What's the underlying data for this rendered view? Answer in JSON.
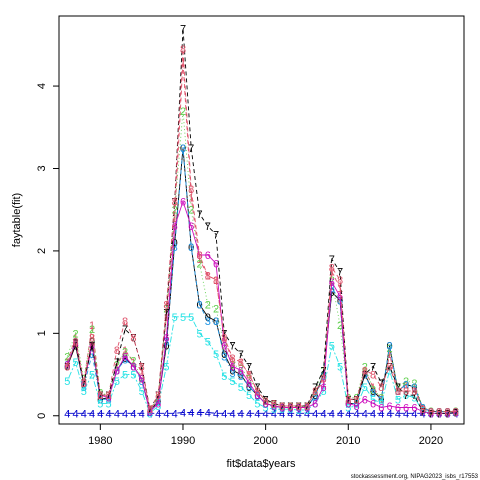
{
  "chart_data": {
    "type": "line",
    "xlabel": "fit$data$years",
    "ylabel": "faytable(fit)",
    "xlim": [
      1975,
      2024
    ],
    "ylim": [
      -0.1,
      4.85
    ],
    "x_ticks": [
      1980,
      1990,
      2000,
      2010,
      2020
    ],
    "y_ticks": [
      0,
      1,
      2,
      3,
      4
    ],
    "grid": false,
    "legend": "none",
    "caption": "stockassessment.org, NIPAG2023_isbs_r17553",
    "x": [
      1976,
      1977,
      1978,
      1979,
      1980,
      1981,
      1982,
      1983,
      1984,
      1985,
      1986,
      1987,
      1988,
      1989,
      1990,
      1991,
      1992,
      1993,
      1994,
      1995,
      1996,
      1997,
      1998,
      1999,
      2000,
      2001,
      2002,
      2003,
      2004,
      2005,
      2006,
      2007,
      2008,
      2009,
      2010,
      2011,
      2012,
      2013,
      2014,
      2015,
      2016,
      2017,
      2018,
      2019,
      2020,
      2021,
      2022,
      2023
    ],
    "series": [
      {
        "label": "0",
        "color": "#000000",
        "dash": "solid",
        "values": [
          0.6,
          0.85,
          0.38,
          0.9,
          0.2,
          0.22,
          0.55,
          0.7,
          0.6,
          0.45,
          0.05,
          0.18,
          0.85,
          2.1,
          3.25,
          2.05,
          1.35,
          1.2,
          1.15,
          0.75,
          0.55,
          0.5,
          0.35,
          0.25,
          0.15,
          0.12,
          0.1,
          0.1,
          0.1,
          0.1,
          0.25,
          0.5,
          1.5,
          1.4,
          0.15,
          0.15,
          0.5,
          0.3,
          0.2,
          0.85,
          0.3,
          0.38,
          0.35,
          0.1,
          0.05,
          0.05,
          0.05,
          0.05
        ]
      },
      {
        "label": "1",
        "color": "#DF536B",
        "dash": "dashed",
        "values": [
          0.65,
          0.95,
          0.4,
          1.1,
          0.25,
          0.25,
          0.6,
          0.8,
          0.65,
          0.55,
          0.07,
          0.2,
          1.2,
          2.4,
          4.3,
          2.65,
          1.9,
          1.7,
          1.65,
          0.95,
          0.65,
          0.65,
          0.5,
          0.3,
          0.18,
          0.15,
          0.12,
          0.12,
          0.12,
          0.12,
          0.3,
          0.4,
          1.75,
          1.55,
          0.2,
          0.2,
          0.55,
          0.35,
          0.2,
          0.75,
          0.3,
          0.38,
          0.35,
          0.1,
          0.06,
          0.05,
          0.05,
          0.06
        ]
      },
      {
        "label": "2",
        "color": "#61D04F",
        "dash": "dotted",
        "values": [
          0.72,
          1.0,
          0.45,
          1.05,
          0.28,
          0.25,
          0.62,
          0.78,
          0.67,
          0.45,
          0.07,
          0.22,
          1.3,
          2.5,
          3.7,
          2.5,
          1.85,
          1.35,
          1.3,
          0.85,
          0.62,
          0.58,
          0.45,
          0.3,
          0.18,
          0.14,
          0.12,
          0.11,
          0.11,
          0.11,
          0.3,
          0.55,
          1.65,
          1.1,
          0.22,
          0.22,
          0.6,
          0.32,
          0.22,
          0.82,
          0.35,
          0.42,
          0.4,
          0.1,
          0.06,
          0.05,
          0.05,
          0.06
        ]
      },
      {
        "label": "3",
        "color": "#2297E6",
        "dash": "dotdash",
        "values": [
          0.62,
          0.9,
          0.35,
          0.75,
          0.2,
          0.2,
          0.55,
          0.68,
          0.6,
          0.42,
          0.05,
          0.17,
          0.9,
          2.05,
          3.25,
          2.05,
          1.35,
          1.15,
          1.15,
          0.72,
          0.52,
          0.48,
          0.36,
          0.24,
          0.14,
          0.11,
          0.1,
          0.1,
          0.1,
          0.1,
          0.24,
          0.48,
          1.55,
          1.4,
          0.15,
          0.15,
          0.5,
          0.28,
          0.2,
          0.85,
          0.3,
          0.38,
          0.35,
          0.1,
          0.05,
          0.05,
          0.05,
          0.05
        ]
      },
      {
        "label": "4",
        "color": "#0000CC",
        "dash": "longdash",
        "values": [
          0.03,
          0.03,
          0.03,
          0.03,
          0.03,
          0.03,
          0.03,
          0.03,
          0.03,
          0.03,
          0.03,
          0.03,
          0.03,
          0.03,
          0.04,
          0.04,
          0.04,
          0.04,
          0.03,
          0.03,
          0.03,
          0.03,
          0.03,
          0.03,
          0.03,
          0.03,
          0.03,
          0.03,
          0.03,
          0.03,
          0.03,
          0.03,
          0.03,
          0.03,
          0.03,
          0.03,
          0.03,
          0.03,
          0.03,
          0.03,
          0.03,
          0.03,
          0.03,
          0.03,
          0.03,
          0.03,
          0.03,
          0.03
        ]
      },
      {
        "label": "5",
        "color": "#28E2E5",
        "dash": "twodash",
        "values": [
          0.42,
          0.65,
          0.3,
          0.5,
          0.15,
          0.15,
          0.42,
          0.5,
          0.5,
          0.3,
          0.03,
          0.12,
          0.6,
          1.2,
          1.2,
          1.2,
          1.0,
          0.9,
          0.75,
          0.48,
          0.42,
          0.35,
          0.25,
          0.15,
          0.1,
          0.08,
          0.08,
          0.08,
          0.07,
          0.07,
          0.15,
          0.3,
          0.85,
          0.6,
          0.1,
          0.12,
          0.35,
          0.2,
          0.15,
          0.55,
          0.2,
          0.25,
          0.22,
          0.06,
          0.03,
          0.03,
          0.03,
          0.04
        ]
      },
      {
        "label": "6",
        "color": "#CD0BBC",
        "dash": "solid",
        "values": [
          0.62,
          0.88,
          0.4,
          0.85,
          0.25,
          0.22,
          0.55,
          0.72,
          0.6,
          0.45,
          0.05,
          0.15,
          0.95,
          2.3,
          2.6,
          2.3,
          1.95,
          1.95,
          1.85,
          0.85,
          0.6,
          0.55,
          0.4,
          0.25,
          0.15,
          0.12,
          0.1,
          0.1,
          0.1,
          0.1,
          0.15,
          0.35,
          1.62,
          1.45,
          0.15,
          0.12,
          0.2,
          0.15,
          0.1,
          0.12,
          0.1,
          0.1,
          0.1,
          0.05,
          0.03,
          0.03,
          0.03,
          0.04
        ]
      },
      {
        "label": "7",
        "color": "#000000",
        "dash": "dashed",
        "values": [
          0.6,
          0.88,
          0.4,
          0.85,
          0.25,
          0.25,
          0.65,
          1.05,
          0.95,
          0.6,
          0.08,
          0.25,
          1.25,
          2.6,
          4.7,
          3.25,
          2.45,
          2.3,
          2.2,
          1.0,
          0.85,
          0.75,
          0.6,
          0.35,
          0.2,
          0.15,
          0.12,
          0.12,
          0.12,
          0.12,
          0.35,
          0.55,
          1.9,
          1.75,
          0.2,
          0.2,
          0.5,
          0.6,
          0.4,
          0.6,
          0.35,
          0.25,
          0.25,
          0.05,
          0.03,
          0.03,
          0.03,
          0.04
        ]
      },
      {
        "label": "8",
        "color": "#DF536B",
        "dash": "dashed",
        "values": [
          0.6,
          0.9,
          0.4,
          0.95,
          0.25,
          0.25,
          0.8,
          1.15,
          0.95,
          0.6,
          0.08,
          0.25,
          1.35,
          2.6,
          4.45,
          2.75,
          1.95,
          1.7,
          1.65,
          0.95,
          0.7,
          0.65,
          0.5,
          0.3,
          0.18,
          0.15,
          0.12,
          0.12,
          0.12,
          0.12,
          0.3,
          0.45,
          1.8,
          1.65,
          0.2,
          0.2,
          0.55,
          0.5,
          0.35,
          0.6,
          0.3,
          0.3,
          0.3,
          0.08,
          0.05,
          0.05,
          0.05,
          0.05
        ]
      }
    ]
  }
}
